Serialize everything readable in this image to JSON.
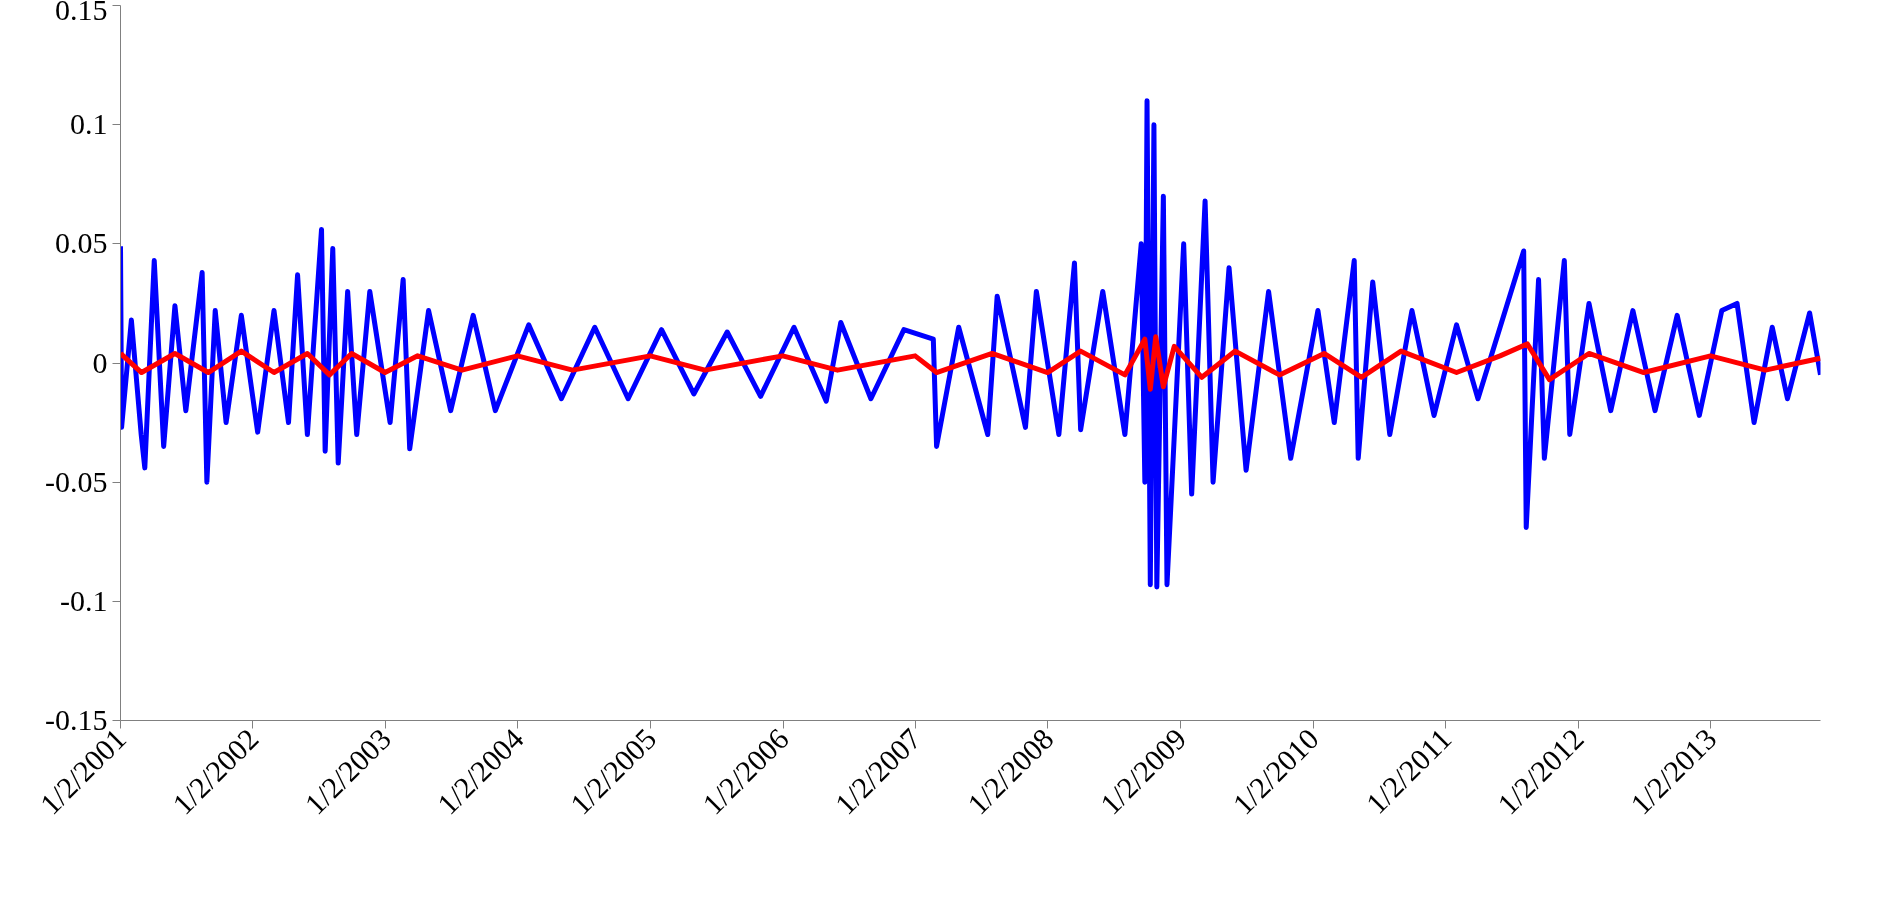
{
  "chart_data": {
    "type": "line",
    "ylim": [
      -0.15,
      0.15
    ],
    "yticks": [
      -0.15,
      -0.1,
      -0.05,
      0,
      0.05,
      0.1,
      0.15
    ],
    "xlim": [
      "2001-01-02",
      "2013-10-31"
    ],
    "xticks": [
      {
        "value": "2001-01-02",
        "label": "1/2/2001"
      },
      {
        "value": "2002-01-02",
        "label": "1/2/2002"
      },
      {
        "value": "2003-01-02",
        "label": "1/2/2003"
      },
      {
        "value": "2004-01-02",
        "label": "1/2/2004"
      },
      {
        "value": "2005-01-02",
        "label": "1/2/2005"
      },
      {
        "value": "2006-01-02",
        "label": "1/2/2006"
      },
      {
        "value": "2007-01-02",
        "label": "1/2/2007"
      },
      {
        "value": "2008-01-02",
        "label": "1/2/2008"
      },
      {
        "value": "2009-01-02",
        "label": "1/2/2009"
      },
      {
        "value": "2010-01-02",
        "label": "1/2/2010"
      },
      {
        "value": "2011-01-02",
        "label": "1/2/2011"
      },
      {
        "value": "2012-01-02",
        "label": "1/2/2012"
      },
      {
        "value": "2013-01-02",
        "label": "1/2/2013"
      }
    ],
    "grid": false,
    "marker": "none",
    "line_style": "solid",
    "series": [
      {
        "color": "#0000ff",
        "x": [
          "2001-01-02",
          "2001-01-05",
          "2001-02-01",
          "2001-02-28",
          "2001-03-10",
          "2001-04-05",
          "2001-05-01",
          "2001-06-01",
          "2001-07-01",
          "2001-08-15",
          "2001-08-28",
          "2001-09-20",
          "2001-10-20",
          "2001-12-01",
          "2002-01-15",
          "2002-03-01",
          "2002-04-10",
          "2002-05-05",
          "2002-06-01",
          "2002-07-10",
          "2002-07-20",
          "2002-08-10",
          "2002-08-25",
          "2002-09-20",
          "2002-10-15",
          "2002-11-20",
          "2003-01-15",
          "2003-02-20",
          "2003-03-10",
          "2003-05-01",
          "2003-07-01",
          "2003-09-01",
          "2003-11-01",
          "2004-02-01",
          "2004-05-01",
          "2004-08-01",
          "2004-11-01",
          "2005-02-01",
          "2005-05-01",
          "2005-08-01",
          "2005-11-01",
          "2006-02-01",
          "2006-05-01",
          "2006-06-10",
          "2006-09-01",
          "2006-12-01",
          "2007-02-20",
          "2007-03-01",
          "2007-05-01",
          "2007-07-20",
          "2007-08-15",
          "2007-11-01",
          "2007-12-01",
          "2008-02-01",
          "2008-03-15",
          "2008-04-01",
          "2008-06-01",
          "2008-08-01",
          "2008-09-15",
          "2008-09-25",
          "2008-10-01",
          "2008-10-10",
          "2008-10-20",
          "2008-10-28",
          "2008-11-15",
          "2008-11-25",
          "2009-01-10",
          "2009-02-01",
          "2009-03-10",
          "2009-04-01",
          "2009-05-15",
          "2009-07-01",
          "2009-09-01",
          "2009-11-01",
          "2010-01-15",
          "2010-03-01",
          "2010-04-25",
          "2010-05-06",
          "2010-06-15",
          "2010-08-01",
          "2010-10-01",
          "2010-12-01",
          "2011-02-01",
          "2011-04-01",
          "2011-06-01",
          "2011-08-05",
          "2011-08-12",
          "2011-09-15",
          "2011-10-01",
          "2011-11-25",
          "2011-12-10",
          "2012-02-01",
          "2012-04-01",
          "2012-06-01",
          "2012-08-01",
          "2012-10-01",
          "2012-12-01",
          "2013-02-01",
          "2013-03-15",
          "2013-05-01",
          "2013-06-20",
          "2013-08-01",
          "2013-10-01",
          "2013-10-31"
        ],
        "values": [
          0.049,
          -0.027,
          0.018,
          -0.03,
          -0.044,
          0.043,
          -0.035,
          0.024,
          -0.02,
          0.038,
          -0.05,
          0.022,
          -0.025,
          0.02,
          -0.029,
          0.022,
          -0.025,
          0.037,
          -0.03,
          0.056,
          -0.037,
          0.048,
          -0.042,
          0.03,
          -0.03,
          0.03,
          -0.025,
          0.035,
          -0.036,
          0.022,
          -0.02,
          0.02,
          -0.02,
          0.016,
          -0.015,
          0.015,
          -0.015,
          0.014,
          -0.013,
          0.013,
          -0.014,
          0.015,
          -0.016,
          0.017,
          -0.015,
          0.014,
          0.01,
          -0.035,
          0.015,
          -0.03,
          0.028,
          -0.027,
          0.03,
          -0.03,
          0.042,
          -0.028,
          0.03,
          -0.03,
          0.05,
          -0.05,
          0.11,
          -0.093,
          0.1,
          -0.094,
          0.07,
          -0.093,
          0.05,
          -0.055,
          0.068,
          -0.05,
          0.04,
          -0.045,
          0.03,
          -0.04,
          0.022,
          -0.025,
          0.043,
          -0.04,
          0.034,
          -0.03,
          0.022,
          -0.022,
          0.016,
          -0.015,
          0.015,
          0.047,
          -0.069,
          0.035,
          -0.04,
          0.043,
          -0.03,
          0.025,
          -0.02,
          0.022,
          -0.02,
          0.02,
          -0.022,
          0.022,
          0.025,
          -0.025,
          0.015,
          -0.015,
          0.021,
          -0.005
        ]
      },
      {
        "color": "#ff0000",
        "x": [
          "2001-01-02",
          "2001-03-01",
          "2001-06-01",
          "2001-09-01",
          "2001-12-01",
          "2002-03-01",
          "2002-06-01",
          "2002-08-01",
          "2002-10-01",
          "2003-01-01",
          "2003-04-01",
          "2003-08-01",
          "2004-01-01",
          "2004-06-01",
          "2005-01-01",
          "2005-06-01",
          "2006-01-01",
          "2006-06-01",
          "2007-01-01",
          "2007-03-01",
          "2007-08-01",
          "2008-01-01",
          "2008-04-01",
          "2008-08-01",
          "2008-09-25",
          "2008-10-10",
          "2008-10-25",
          "2008-11-15",
          "2008-12-15",
          "2009-03-01",
          "2009-06-01",
          "2009-10-01",
          "2010-02-01",
          "2010-05-15",
          "2010-09-01",
          "2011-02-01",
          "2011-06-01",
          "2011-08-15",
          "2011-10-15",
          "2012-02-01",
          "2012-07-01",
          "2013-01-01",
          "2013-06-01",
          "2013-10-31"
        ],
        "values": [
          0.004,
          -0.004,
          0.004,
          -0.004,
          0.005,
          -0.004,
          0.004,
          -0.005,
          0.004,
          -0.004,
          0.003,
          -0.003,
          0.003,
          -0.003,
          0.003,
          -0.003,
          0.003,
          -0.003,
          0.003,
          -0.004,
          0.004,
          -0.004,
          0.005,
          -0.005,
          0.01,
          -0.011,
          0.011,
          -0.01,
          0.007,
          -0.006,
          0.005,
          -0.005,
          0.004,
          -0.006,
          0.005,
          -0.004,
          0.003,
          0.008,
          -0.007,
          0.004,
          -0.004,
          0.003,
          -0.003,
          0.002
        ]
      }
    ]
  }
}
